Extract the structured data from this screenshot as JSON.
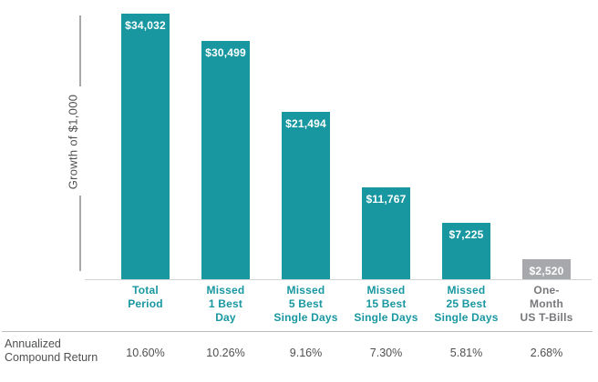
{
  "chart_data": {
    "type": "bar",
    "title": "",
    "ylabel": "Growth of $1,000",
    "xlabel": "",
    "ylim": [
      0,
      34032
    ],
    "grid": false,
    "legend": false,
    "categories": [
      "Total\nPeriod",
      "Missed\n1 Best\nDay",
      "Missed\n5 Best\nSingle Days",
      "Missed\n15 Best\nSingle Days",
      "Missed\n25 Best\nSingle Days",
      "One-\nMonth\nUS T-Bills"
    ],
    "values": [
      34032,
      30499,
      21494,
      11767,
      7225,
      2520
    ],
    "value_labels": [
      "$34,032",
      "$30,499",
      "$21,494",
      "$11,767",
      "$7,225",
      "$2,520"
    ],
    "bar_colors": [
      "#1897a1",
      "#1897a1",
      "#1897a1",
      "#1897a1",
      "#1897a1",
      "#a6a8ab"
    ],
    "category_label_colors": [
      "#1897a1",
      "#1897a1",
      "#1897a1",
      "#1897a1",
      "#1897a1",
      "#77787b"
    ],
    "annualized_row": {
      "label": "Annualized\nCompound Return",
      "values": [
        "10.60%",
        "10.26%",
        "9.16%",
        "7.30%",
        "5.81%",
        "2.68%"
      ]
    }
  },
  "colors": {
    "accent_teal": "#1897a1",
    "bar_gray": "#a6a8ab",
    "text_dark": "#4f5052",
    "text_gray": "#77787b",
    "axis_line": "#a7a9ac",
    "baseline": "#d1d3d4",
    "divider": "#b9bbbd"
  }
}
